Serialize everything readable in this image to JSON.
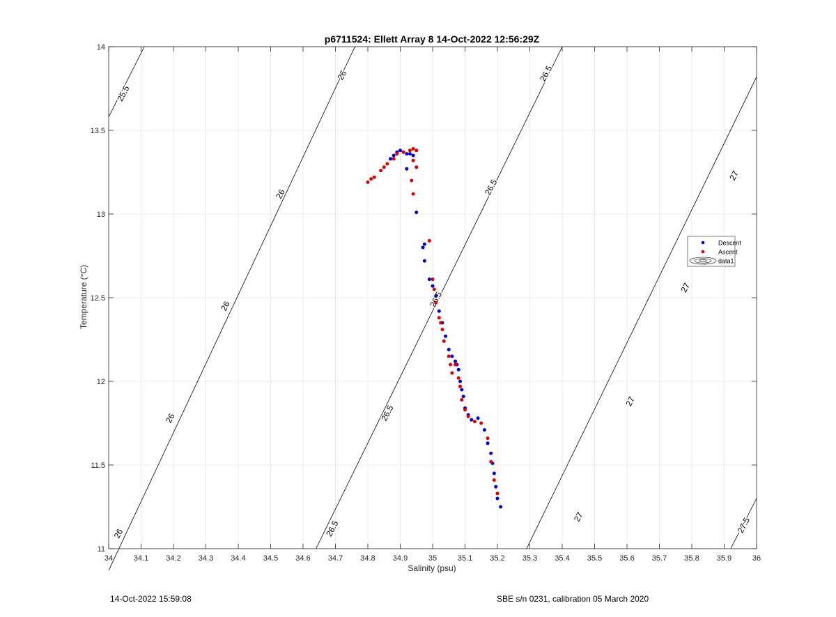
{
  "chart_data": {
    "type": "scatter",
    "title": "p6711524: Ellett Array 8 14-Oct-2022 12:56:29Z",
    "xlabel": "Salinity (psu)",
    "ylabel": "Temperature (°C)",
    "xlim": [
      34,
      36
    ],
    "ylim": [
      11,
      14
    ],
    "xticks": [
      "34",
      "34.1",
      "34.2",
      "34.3",
      "34.4",
      "34.5",
      "34.6",
      "34.7",
      "34.8",
      "34.9",
      "35",
      "35.1",
      "35.2",
      "35.3",
      "35.4",
      "35.5",
      "35.6",
      "35.7",
      "35.8",
      "35.9",
      "36"
    ],
    "yticks": [
      "11",
      "11.5",
      "12",
      "12.5",
      "13",
      "13.5",
      "14"
    ],
    "grid": true,
    "legend_position": "right",
    "colors": {
      "descent": "#0000cc",
      "ascent": "#dd0000",
      "contour": "#000000",
      "grid": "#e6e6e6"
    },
    "series": [
      {
        "name": "Descent",
        "marker": "dot",
        "x": [
          34.87,
          34.88,
          34.89,
          34.9,
          34.91,
          34.92,
          34.93,
          34.94,
          34.92,
          34.95,
          34.97,
          34.975,
          34.975,
          34.99,
          35.0,
          35.01,
          35.02,
          35.03,
          35.04,
          35.05,
          35.06,
          35.07,
          35.075,
          35.08,
          35.085,
          35.09,
          35.095,
          35.1,
          35.11,
          35.12,
          35.14,
          35.16,
          35.17,
          35.18,
          35.185,
          35.19,
          35.195,
          35.2,
          35.21
        ],
        "y": [
          13.33,
          13.35,
          13.37,
          13.38,
          13.37,
          13.36,
          13.36,
          13.35,
          13.27,
          13.01,
          12.8,
          12.82,
          12.72,
          12.61,
          12.57,
          12.51,
          12.42,
          12.35,
          12.27,
          12.19,
          12.15,
          12.12,
          12.1,
          12.07,
          12.0,
          11.95,
          11.91,
          11.84,
          11.8,
          11.77,
          11.78,
          11.71,
          11.63,
          11.57,
          11.51,
          11.45,
          11.37,
          11.3,
          11.25
        ]
      },
      {
        "name": "Ascent",
        "marker": "dot",
        "x": [
          34.8,
          34.81,
          34.82,
          34.84,
          34.85,
          34.86,
          34.88,
          34.89,
          34.91,
          34.93,
          34.94,
          34.95,
          34.935,
          34.94,
          34.95,
          34.94,
          34.99,
          35.0,
          35.005,
          35.01,
          35.02,
          35.025,
          35.03,
          35.035,
          35.05,
          35.055,
          35.06,
          35.07,
          35.08,
          35.085,
          35.09,
          35.1,
          35.11,
          35.13,
          35.15,
          35.17,
          35.18,
          35.19,
          35.2
        ],
        "y": [
          13.19,
          13.21,
          13.22,
          13.26,
          13.28,
          13.3,
          13.33,
          13.36,
          13.37,
          13.38,
          13.39,
          13.38,
          13.2,
          13.12,
          13.28,
          13.32,
          12.84,
          12.61,
          12.55,
          12.47,
          12.38,
          12.35,
          12.31,
          12.24,
          12.15,
          12.1,
          12.05,
          12.1,
          12.02,
          11.97,
          11.89,
          11.83,
          11.79,
          11.76,
          11.75,
          11.66,
          11.52,
          11.41,
          11.33
        ]
      }
    ],
    "legend_entries": [
      "Descent",
      "Ascent",
      "data1"
    ],
    "contours": {
      "series_name": "data1",
      "lines": [
        {
          "level": 25.5,
          "points": [
            [
              34.0,
              13.58
            ],
            [
              34.11,
              14.0
            ]
          ]
        },
        {
          "level": 26.0,
          "points": [
            [
              34.0,
              10.87
            ],
            [
              34.76,
              14.0
            ]
          ]
        },
        {
          "level": 26.5,
          "points": [
            [
              34.64,
              11.0
            ],
            [
              35.4,
              14.0
            ]
          ]
        },
        {
          "level": 27.0,
          "points": [
            [
              35.29,
              11.0
            ],
            [
              36.0,
              13.82
            ]
          ]
        },
        {
          "level": 27.5,
          "points": [
            [
              35.92,
              11.0
            ],
            [
              36.0,
              11.3
            ]
          ]
        }
      ],
      "labels": [
        {
          "text": "25.5",
          "x": 34.045,
          "y": 13.72
        },
        {
          "text": "26",
          "x": 34.72,
          "y": 13.83
        },
        {
          "text": "26",
          "x": 34.53,
          "y": 13.12
        },
        {
          "text": "26",
          "x": 34.36,
          "y": 12.45
        },
        {
          "text": "26",
          "x": 34.19,
          "y": 11.78
        },
        {
          "text": "26",
          "x": 34.03,
          "y": 11.09
        },
        {
          "text": "26.5",
          "x": 35.35,
          "y": 13.84
        },
        {
          "text": "26.5",
          "x": 35.18,
          "y": 13.16
        },
        {
          "text": "26.5",
          "x": 35.01,
          "y": 12.49
        },
        {
          "text": "26.5",
          "x": 34.86,
          "y": 11.81
        },
        {
          "text": "26.5",
          "x": 34.69,
          "y": 11.12
        },
        {
          "text": "27",
          "x": 35.93,
          "y": 13.23
        },
        {
          "text": "27",
          "x": 35.78,
          "y": 12.56
        },
        {
          "text": "27",
          "x": 35.61,
          "y": 11.88
        },
        {
          "text": "27",
          "x": 35.45,
          "y": 11.19
        },
        {
          "text": "27.5",
          "x": 35.96,
          "y": 11.14
        }
      ]
    }
  },
  "footer": {
    "left": "14-Oct-2022 15:59:08",
    "right": "SBE s/n 0231, calibration 05 March 2020"
  }
}
